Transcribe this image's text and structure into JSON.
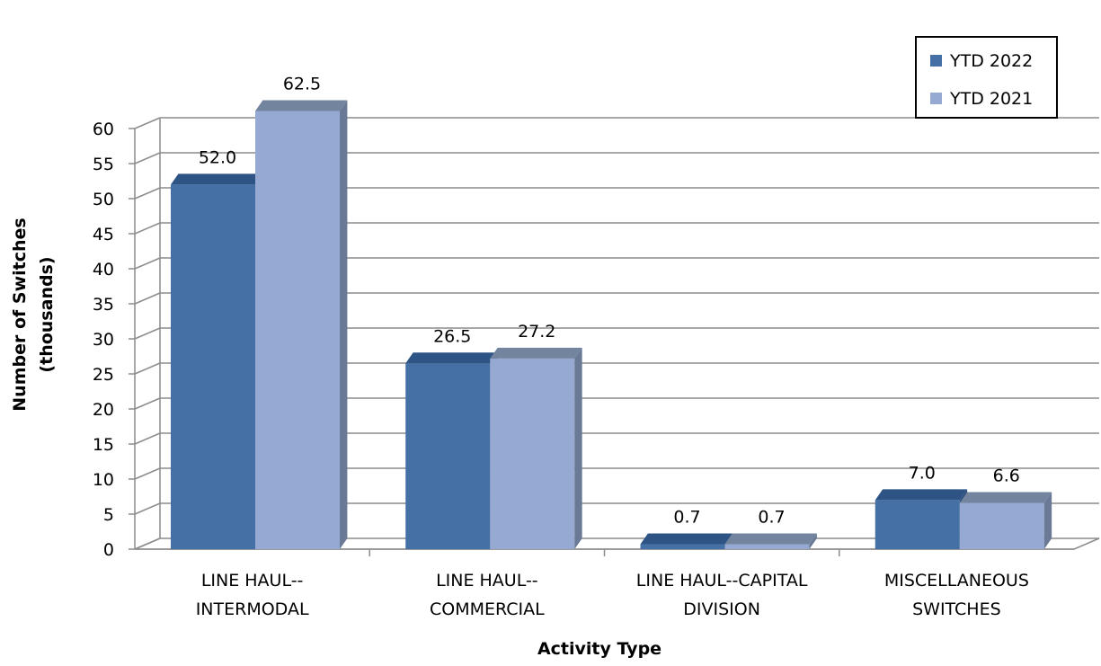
{
  "chart_data": {
    "type": "bar",
    "title": "",
    "xlabel": "Activity Type",
    "ylabel": [
      "Number of Switches",
      "(thousands)"
    ],
    "ylim": [
      0,
      60
    ],
    "yticks": [
      0,
      5,
      10,
      15,
      20,
      25,
      30,
      35,
      40,
      45,
      50,
      55,
      60
    ],
    "grid": true,
    "legend_position": "top-right",
    "categories": [
      [
        "LINE HAUL--",
        "INTERMODAL"
      ],
      [
        "LINE HAUL--",
        "COMMERCIAL"
      ],
      [
        "LINE HAUL--CAPITAL",
        "DIVISION"
      ],
      [
        "MISCELLANEOUS",
        "SWITCHES"
      ]
    ],
    "series": [
      {
        "name": "YTD 2022",
        "values": [
          52.0,
          26.5,
          0.7,
          7.0
        ],
        "labels": [
          "52.0",
          "26.5",
          "0.7",
          "7.0"
        ],
        "color": "#4470A6",
        "top_color": "#2E5486",
        "side_color": "#2A4E7C"
      },
      {
        "name": "YTD 2021",
        "values": [
          62.5,
          27.2,
          0.7,
          6.6
        ],
        "labels": [
          "62.5",
          "27.2",
          "0.7",
          "6.6"
        ],
        "color": "#95A9D3",
        "top_color": "#73849F",
        "side_color": "#6A7A96"
      }
    ],
    "gridline_color": "#8c8c8c"
  }
}
